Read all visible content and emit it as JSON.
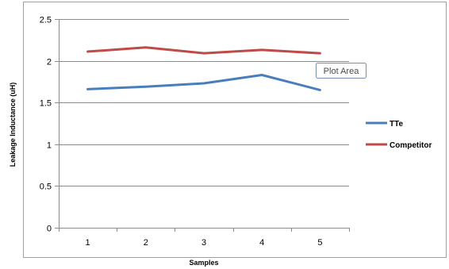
{
  "chart_data": {
    "type": "line",
    "title": "",
    "xlabel": "Samples",
    "ylabel": "Leakage Inductance (uH)",
    "categories": [
      "1",
      "2",
      "3",
      "4",
      "5"
    ],
    "ylim": [
      0,
      2.5
    ],
    "yticks": [
      "0",
      "0.5",
      "1",
      "1.5",
      "2",
      "2.5"
    ],
    "grid": true,
    "legend_position": "right",
    "series": [
      {
        "name": "TTe",
        "color": "#4a7ebb",
        "values": [
          1.66,
          1.69,
          1.73,
          1.83,
          1.65
        ]
      },
      {
        "name": "Competitor",
        "color": "#be4b48",
        "values": [
          2.11,
          2.16,
          2.09,
          2.13,
          2.09
        ]
      }
    ]
  },
  "tooltip": {
    "label": "Plot Area"
  }
}
